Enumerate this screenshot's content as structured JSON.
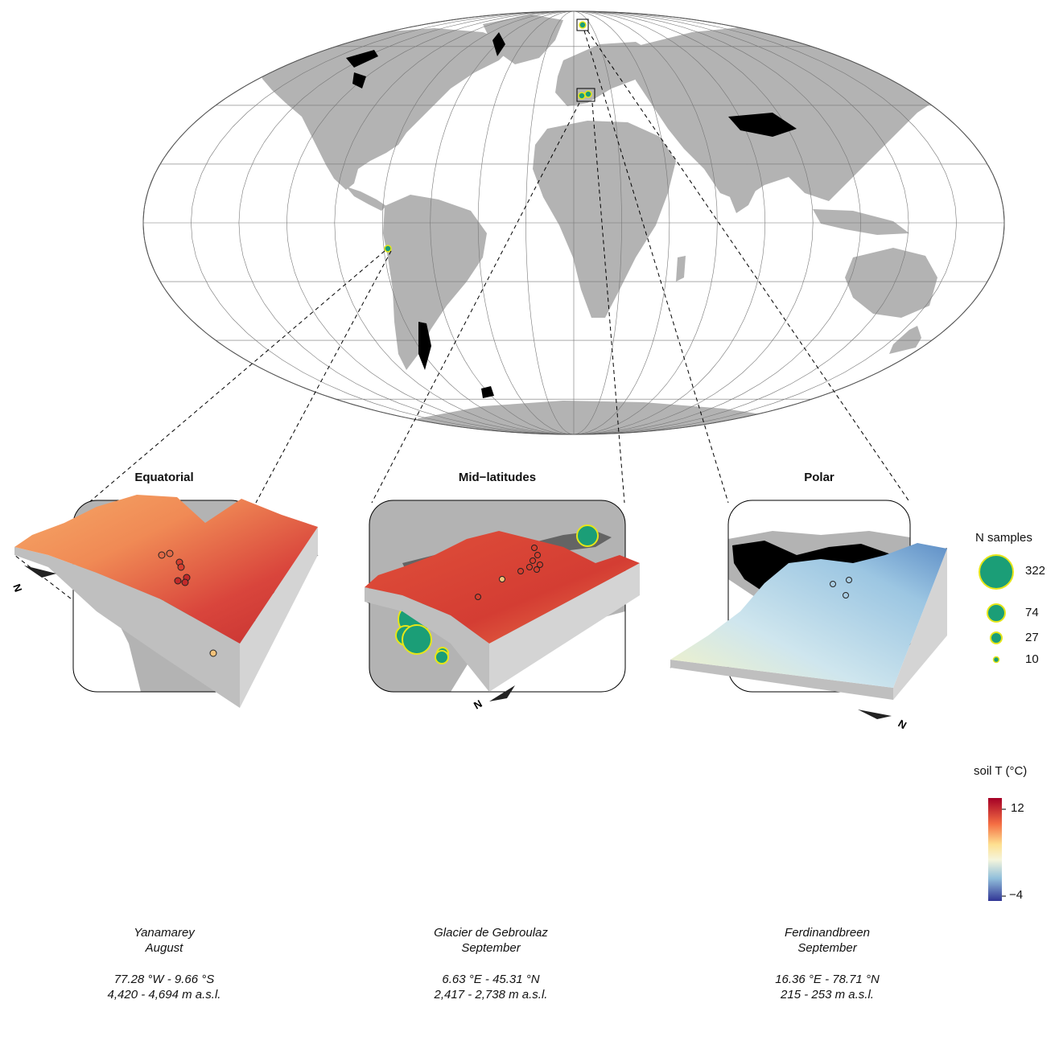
{
  "panels": {
    "equatorial": {
      "title": "Equatorial",
      "glacier": "Yanamarey",
      "month": "August",
      "coords": "77.28 °W - 9.66 °S",
      "elevation": "4,420 - 4,694 m a.s.l.",
      "north_label": "N"
    },
    "mid_latitudes": {
      "title": "Mid−latitudes",
      "glacier": "Glacier de Gebroulaz",
      "month": "September",
      "coords": "6.63 °E - 45.31 °N",
      "elevation": "2,417 - 2,738 m a.s.l.",
      "north_label": "N"
    },
    "polar": {
      "title": "Polar",
      "glacier": "Ferdinandbreen",
      "month": "September",
      "coords": "16.36 °E - 78.71 °N",
      "elevation": "215 - 253 m a.s.l.",
      "north_label": "N"
    }
  },
  "legend_samples": {
    "title": "N samples",
    "values": [
      "322",
      "74",
      "27",
      "10"
    ]
  },
  "legend_temperature": {
    "title": "soil T (°C)",
    "max_label": "12",
    "min_label": "−4"
  },
  "colors": {
    "land": "#b3b3b3",
    "glacier": "#000000",
    "marker_fill": "#1b9e77",
    "marker_stroke": "#e6e619",
    "warm": "#b2182b",
    "cool": "#2c5fa8"
  }
}
